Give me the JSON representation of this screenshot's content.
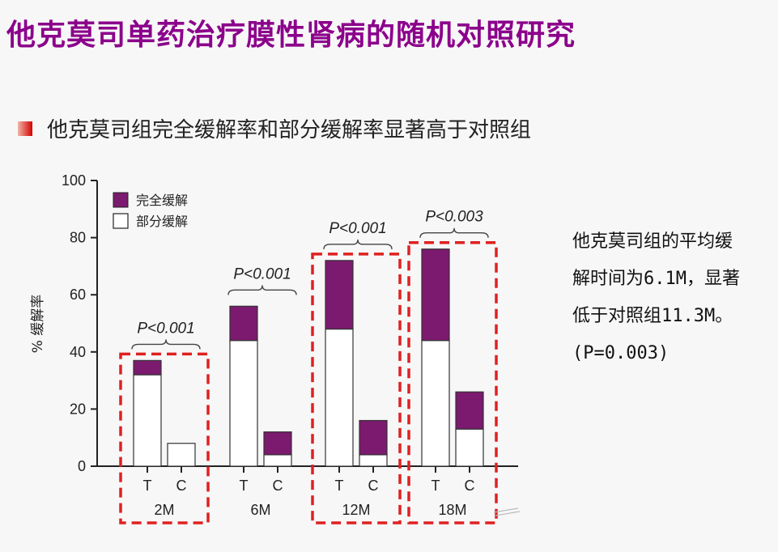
{
  "page": {
    "title": "他克莫司单药治疗膜性肾病的随机对照研究",
    "bullet_text": "他克莫司组完全缓解率和部分缓解率显著高于对照组",
    "side_note": [
      "他克莫司组的平均缓",
      "解时间为6.1M，显著",
      "低于对照组11.3M。",
      "(P=0.003)"
    ]
  },
  "colors": {
    "complete": "#7b1a6e",
    "partial": "#ffffff",
    "highlight": "#e02020",
    "title": "#8b008b"
  },
  "chart_data": {
    "type": "bar",
    "subtype": "stacked",
    "ylabel": "% 缓解率",
    "ylim": [
      0,
      100
    ],
    "yticks": [
      0,
      20,
      40,
      60,
      80,
      100
    ],
    "legend": {
      "placement": "top-left",
      "entries": [
        "完全缓解",
        "部分缓解"
      ]
    },
    "groups": [
      {
        "label": "2M",
        "pvalue": "P<0.001",
        "highlighted": true,
        "bars": [
          {
            "label": "T",
            "partial": 32,
            "complete": 5
          },
          {
            "label": "C",
            "partial": 8,
            "complete": 0
          }
        ]
      },
      {
        "label": "6M",
        "pvalue": "P<0.001",
        "highlighted": false,
        "bars": [
          {
            "label": "T",
            "partial": 44,
            "complete": 12
          },
          {
            "label": "C",
            "partial": 4,
            "complete": 8
          }
        ]
      },
      {
        "label": "12M",
        "pvalue": "P<0.001",
        "highlighted": true,
        "bars": [
          {
            "label": "T",
            "partial": 48,
            "complete": 24
          },
          {
            "label": "C",
            "partial": 4,
            "complete": 12
          }
        ]
      },
      {
        "label": "18M",
        "pvalue": "P<0.003",
        "highlighted": true,
        "bars": [
          {
            "label": "T",
            "partial": 44,
            "complete": 32
          },
          {
            "label": "C",
            "partial": 13,
            "complete": 13
          }
        ]
      }
    ]
  }
}
